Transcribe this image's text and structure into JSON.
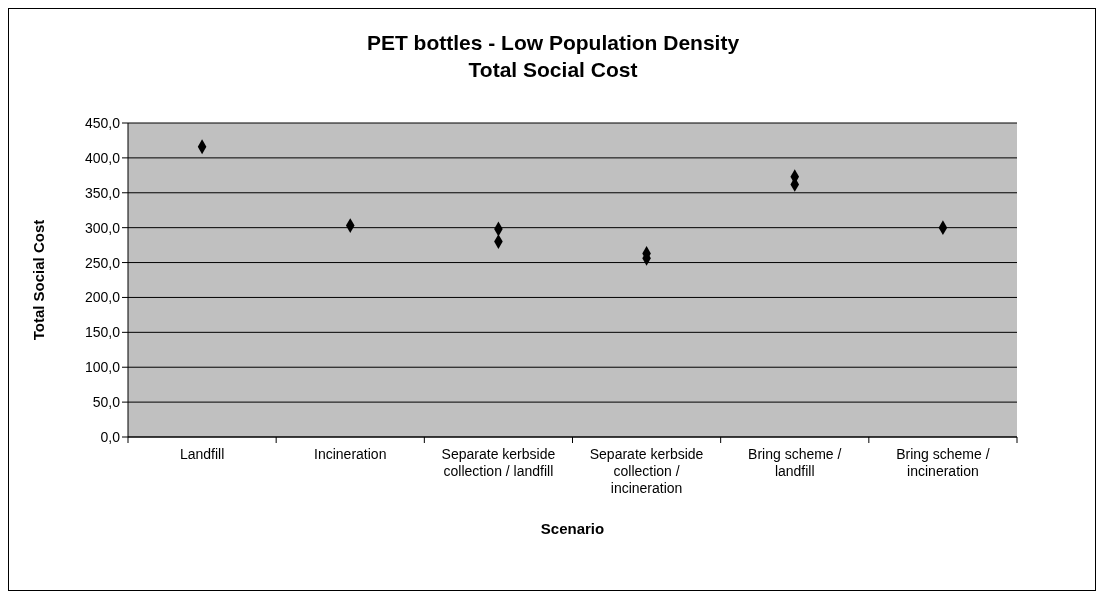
{
  "chart_data": {
    "type": "scatter",
    "title": "PET bottles - Low Population Density",
    "subtitle": "Total Social Cost",
    "xlabel": "Scenario",
    "ylabel": "Total Social Cost",
    "categories": [
      "Landfill",
      "Incineration",
      "Separate kerbside collection / landfill",
      "Separate kerbside collection / incineration",
      "Bring scheme / landfill",
      "Bring scheme / incineration"
    ],
    "series": [
      {
        "color": "#000000",
        "x": [
          "Landfill",
          "Incineration",
          "Separate kerbside collection / landfill",
          "Separate kerbside collection / landfill",
          "Separate kerbside collection / incineration",
          "Separate kerbside collection / incineration",
          "Bring scheme / landfill",
          "Bring scheme / landfill",
          "Bring scheme / incineration"
        ],
        "values": [
          416,
          303,
          298,
          280,
          263,
          256,
          373,
          362,
          300
        ]
      }
    ],
    "ylim": [
      0,
      450
    ],
    "yticks": [
      {
        "value": 0,
        "label": "0,0"
      },
      {
        "value": 50,
        "label": "50,0"
      },
      {
        "value": 100,
        "label": "100,0"
      },
      {
        "value": 150,
        "label": "150,0"
      },
      {
        "value": 200,
        "label": "200,0"
      },
      {
        "value": 250,
        "label": "250,0"
      },
      {
        "value": 300,
        "label": "300,0"
      },
      {
        "value": 350,
        "label": "350,0"
      },
      {
        "value": 400,
        "label": "400,0"
      },
      {
        "value": 450,
        "label": "450,0"
      }
    ],
    "grid": "y",
    "legend": false,
    "marker": "diamond"
  }
}
